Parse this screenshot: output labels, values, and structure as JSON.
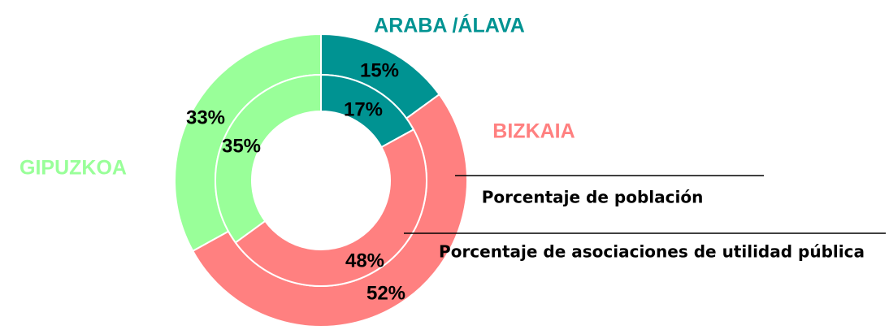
{
  "chart_data": {
    "type": "donut",
    "categories": [
      "ARABA /ÁLAVA",
      "BIZKAIA",
      "GIPUZKOA"
    ],
    "colors": [
      "#009392",
      "#ff8080",
      "#99ff99"
    ],
    "series": [
      {
        "name": "Porcentaje de población",
        "values": [
          15,
          52,
          33
        ],
        "value_labels": [
          "15%",
          "52%",
          "33%"
        ]
      },
      {
        "name": "Porcentaje de asociaciones de utilidad pública",
        "values": [
          17,
          48,
          35
        ],
        "value_labels": [
          "17%",
          "48%",
          "35%"
        ]
      }
    ]
  }
}
